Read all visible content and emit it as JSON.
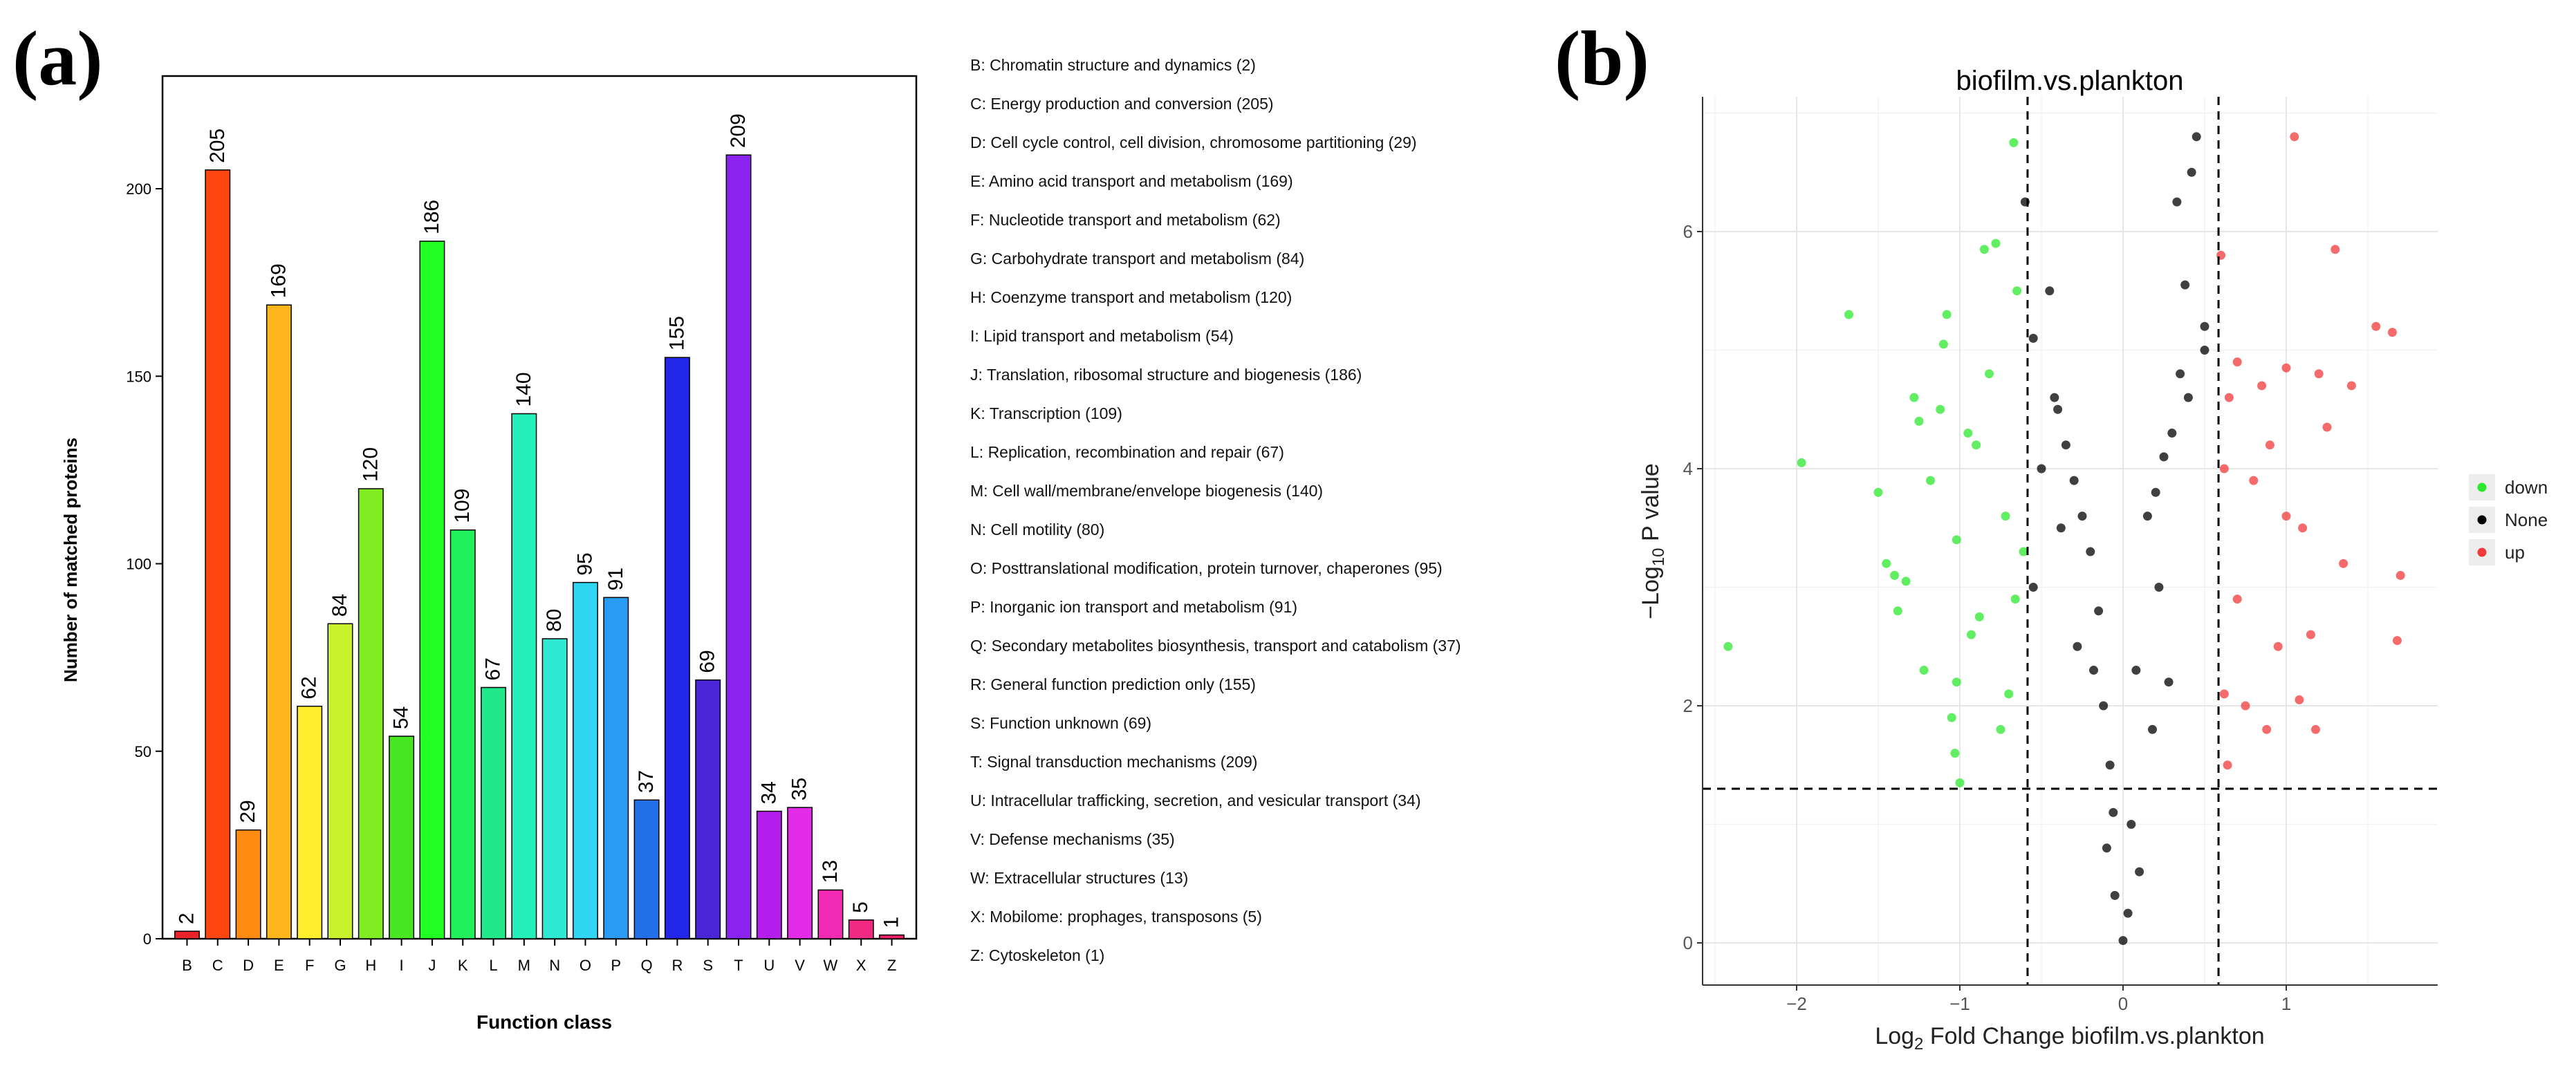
{
  "panels": {
    "a": {
      "label": "(a)"
    },
    "b": {
      "label": "(b)"
    }
  },
  "chart_data": [
    {
      "type": "bar",
      "title": "",
      "xlabel": "Function class",
      "ylabel": "Number of matched proteins",
      "ylim": [
        0,
        230
      ],
      "yticks": [
        0,
        50,
        100,
        150,
        200
      ],
      "grid": false,
      "categories": [
        "B",
        "C",
        "D",
        "E",
        "F",
        "G",
        "H",
        "I",
        "J",
        "K",
        "L",
        "M",
        "N",
        "O",
        "P",
        "Q",
        "R",
        "S",
        "T",
        "U",
        "V",
        "W",
        "X",
        "Z"
      ],
      "values": [
        2,
        205,
        29,
        169,
        62,
        84,
        120,
        54,
        186,
        109,
        67,
        140,
        80,
        95,
        91,
        37,
        155,
        69,
        209,
        34,
        35,
        13,
        5,
        1
      ],
      "colors": [
        "#e8242a",
        "#ff4510",
        "#ff8a12",
        "#ffb51c",
        "#ffee2c",
        "#c9f22c",
        "#82ec22",
        "#48e522",
        "#22ff22",
        "#22f05a",
        "#22e88a",
        "#22f0b8",
        "#2ee8d4",
        "#2ed6f2",
        "#2a9bf2",
        "#2270e8",
        "#2226e8",
        "#4a25d8",
        "#8a22f0",
        "#b41fee",
        "#e22ce8",
        "#f02ab2",
        "#f02a82",
        "#f01e6a"
      ],
      "legend_entries": [
        "B: Chromatin structure and dynamics   (2)",
        "C: Energy production and conversion   (205)",
        "D: Cell cycle control, cell division, chromosome partitioning   (29)",
        "E: Amino acid transport and metabolism   (169)",
        "F: Nucleotide transport and metabolism   (62)",
        "G: Carbohydrate transport and metabolism   (84)",
        "H: Coenzyme transport and metabolism   (120)",
        "I: Lipid transport and metabolism   (54)",
        "J: Translation, ribosomal structure and biogenesis   (186)",
        "K: Transcription   (109)",
        "L: Replication, recombination and repair   (67)",
        "M: Cell wall/membrane/envelope biogenesis   (140)",
        "N: Cell motility   (80)",
        "O: Posttranslational modification, protein turnover, chaperones   (95)",
        "P: Inorganic ion transport and metabolism   (91)",
        "Q: Secondary metabolites biosynthesis, transport and catabolism   (37)",
        "R: General function prediction only   (155)",
        "S: Function unknown   (69)",
        "T: Signal transduction mechanisms   (209)",
        "U: Intracellular trafficking, secretion, and vesicular transport   (34)",
        "V: Defense mechanisms   (35)",
        "W: Extracellular structures   (13)",
        "X: Mobilome: prophages, transposons   (5)",
        "Z: Cytoskeleton   (1)"
      ]
    },
    {
      "type": "scatter",
      "title": "biofilm.vs.plankton",
      "xlabel": "Log2 Fold Change biofilm.vs.plankton",
      "ylabel": "-Log10 P value",
      "xlim": [
        -2.5,
        1.9
      ],
      "ylim": [
        -0.35,
        7.3
      ],
      "xticks": [
        -2,
        -1,
        0,
        1
      ],
      "yticks": [
        0,
        2,
        4,
        6
      ],
      "grid": true,
      "thresholds": {
        "x": [
          -0.585,
          0.585
        ],
        "y": 1.3
      },
      "legend_position": "right",
      "series": [
        {
          "name": "down",
          "color": "#2ee82e",
          "x": [
            -0.67,
            -0.78,
            -0.85,
            -0.65,
            -1.68,
            -2.42,
            -1.97,
            -1.12,
            -1.25,
            -1.08,
            -1.4,
            -1.5,
            -1.18,
            -0.9,
            -1.1,
            -0.95,
            -0.72,
            -1.02,
            -1.22,
            -1.33,
            -0.7,
            -0.82,
            -0.93,
            -1.05,
            -0.61,
            -0.66,
            -1.28,
            -1.45,
            -0.88,
            -0.75,
            -1.38,
            -1.02,
            -1.0,
            -1.03
          ],
          "y": [
            6.75,
            5.9,
            5.85,
            5.5,
            5.3,
            2.5,
            4.05,
            4.5,
            4.4,
            5.3,
            3.1,
            3.8,
            3.9,
            4.2,
            5.05,
            4.3,
            3.6,
            3.4,
            2.3,
            3.05,
            2.1,
            4.8,
            2.6,
            1.9,
            3.3,
            2.9,
            4.6,
            3.2,
            2.75,
            1.8,
            2.8,
            2.2,
            1.35,
            1.6
          ]
        },
        {
          "name": "None",
          "color": "#000000",
          "x": [
            -0.45,
            -0.6,
            -0.55,
            -0.42,
            0.45,
            0.42,
            0.33,
            0.38,
            0.5,
            0.35,
            0.25,
            0.15,
            0.08,
            0.05,
            0.0,
            -0.05,
            -0.08,
            -0.12,
            -0.15,
            -0.2,
            -0.25,
            -0.3,
            -0.35,
            -0.4,
            -0.5,
            -0.55,
            0.2,
            0.3,
            0.4,
            0.5,
            -0.1,
            0.1,
            -0.28,
            0.18,
            -0.38,
            0.28,
            -0.18,
            0.22,
            -0.06,
            0.03
          ],
          "y": [
            5.5,
            6.25,
            5.1,
            4.6,
            6.8,
            6.5,
            6.25,
            5.55,
            5.2,
            4.8,
            4.1,
            3.6,
            2.3,
            1.0,
            0.02,
            0.4,
            1.5,
            2.0,
            2.8,
            3.3,
            3.6,
            3.9,
            4.2,
            4.5,
            4.0,
            3.0,
            3.8,
            4.3,
            4.6,
            5.0,
            0.8,
            0.6,
            2.5,
            1.8,
            3.5,
            2.2,
            2.3,
            3.0,
            1.1,
            0.25
          ]
        },
        {
          "name": "up",
          "color": "#f23a3a",
          "x": [
            1.05,
            0.6,
            1.3,
            1.55,
            1.65,
            0.7,
            0.85,
            1.0,
            1.2,
            1.4,
            0.65,
            0.9,
            1.1,
            0.62,
            0.8,
            1.0,
            1.25,
            1.7,
            0.7,
            0.95,
            1.15,
            0.75,
            0.62,
            0.88,
            1.08,
            1.35,
            1.68,
            0.64,
            1.18
          ],
          "y": [
            6.8,
            5.8,
            5.85,
            5.2,
            5.15,
            4.9,
            4.7,
            4.85,
            4.8,
            4.7,
            4.6,
            4.2,
            3.5,
            4.0,
            3.9,
            3.6,
            4.35,
            3.1,
            2.9,
            2.5,
            2.6,
            2.0,
            2.1,
            1.8,
            2.05,
            3.2,
            2.55,
            1.5,
            1.8
          ]
        }
      ]
    }
  ]
}
